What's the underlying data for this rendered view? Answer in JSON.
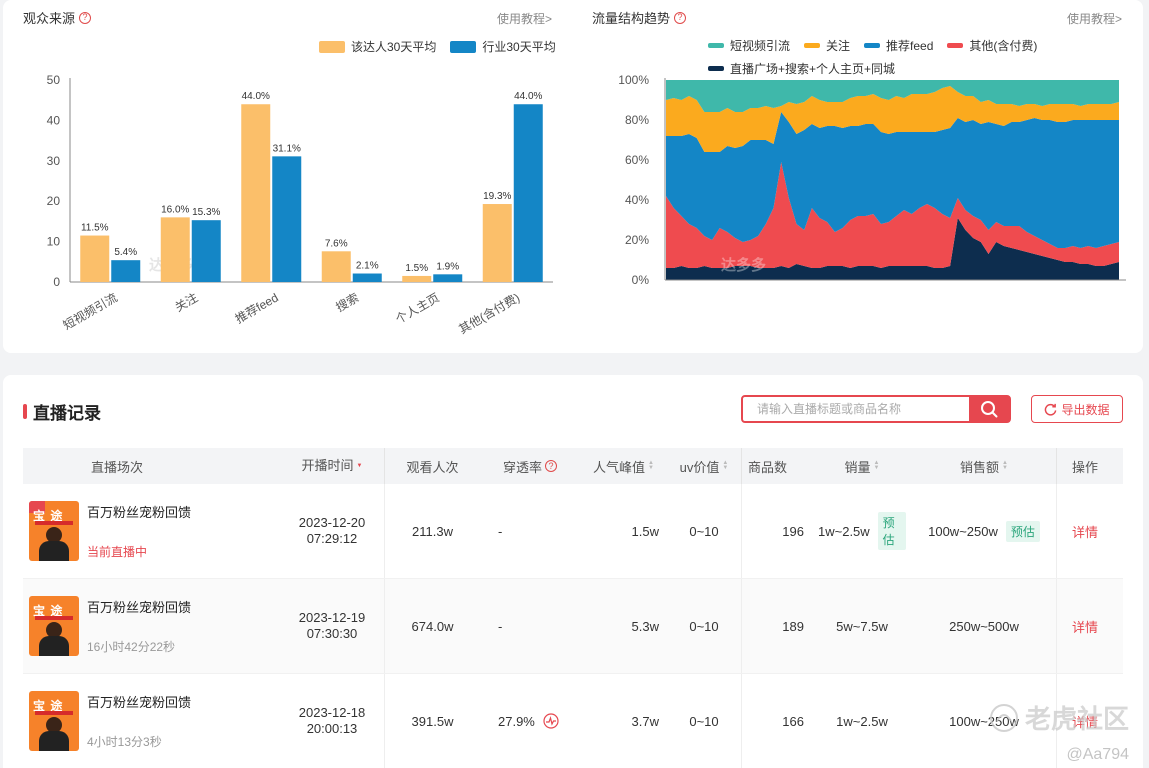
{
  "audience_source": {
    "title": "观众来源",
    "tutorial": "使用教程>",
    "legend": [
      "该达人30天平均",
      "行业30天平均"
    ],
    "watermark": "达多多"
  },
  "traffic_trend": {
    "title": "流量结构趋势",
    "tutorial": "使用教程>",
    "legend": [
      "短视频引流",
      "关注",
      "推荐feed",
      "其他(含付费)",
      "直播广场+搜索+个人主页+同城"
    ],
    "watermark": "达多多"
  },
  "chart_data": [
    {
      "type": "bar",
      "title": "观众来源",
      "categories": [
        "短视频引流",
        "关注",
        "推荐feed",
        "搜索",
        "个人主页",
        "其他(含付费)"
      ],
      "series": [
        {
          "name": "该达人30天平均",
          "values": [
            11.5,
            16.0,
            44.0,
            7.6,
            1.5,
            19.3
          ],
          "labels": [
            "11.5%",
            "16.0%",
            "44.0%",
            "7.6%",
            "1.5%",
            "19.3%"
          ],
          "color": "#fbbf6a"
        },
        {
          "name": "行业30天平均",
          "values": [
            5.4,
            15.3,
            31.1,
            2.1,
            1.9,
            44.0
          ],
          "labels": [
            "5.4%",
            "15.3%",
            "31.1%",
            "2.1%",
            "1.9%",
            "44.0%"
          ],
          "color": "#1486c6"
        }
      ],
      "ylim": [
        0,
        50
      ],
      "yticks": [
        "0",
        "10",
        "20",
        "30",
        "40",
        "50"
      ],
      "legend_position": "top-right"
    },
    {
      "type": "area",
      "title": "流量结构趋势",
      "stacked_percent": true,
      "points": 60,
      "yticks": [
        "0%",
        "20%",
        "40%",
        "60%",
        "80%",
        "100%"
      ],
      "ylim": [
        0,
        100
      ],
      "series": [
        {
          "name": "直播广场+搜索+个人主页+同城",
          "color": "#0d2d4e",
          "values": [
            6,
            6,
            7,
            6,
            6,
            7,
            6,
            6,
            6,
            7,
            7,
            7,
            6,
            6,
            6,
            7,
            6,
            8,
            7,
            6,
            6,
            7,
            7,
            7,
            6,
            7,
            7,
            7,
            6,
            7,
            7,
            7,
            7,
            7,
            7,
            6,
            6,
            7,
            31,
            25,
            21,
            19,
            13,
            19,
            17,
            16,
            15,
            14,
            13,
            12,
            11,
            10,
            9,
            9,
            8,
            8,
            7,
            7,
            8,
            9
          ]
        },
        {
          "name": "其他(含付费)",
          "color": "#ef4b4f",
          "values": [
            36,
            30,
            25,
            22,
            20,
            15,
            14,
            20,
            18,
            14,
            12,
            13,
            16,
            22,
            30,
            52,
            35,
            20,
            18,
            30,
            25,
            22,
            17,
            19,
            24,
            25,
            25,
            26,
            22,
            22,
            25,
            28,
            26,
            29,
            31,
            30,
            27,
            24,
            10,
            10,
            11,
            11,
            12,
            10,
            10,
            11,
            12,
            10,
            9,
            8,
            7,
            6,
            7,
            8,
            8,
            9,
            9,
            10,
            10,
            10
          ]
        },
        {
          "name": "推荐feed",
          "color": "#1486c6",
          "values": [
            30,
            36,
            40,
            45,
            45,
            42,
            44,
            38,
            43,
            45,
            48,
            50,
            48,
            42,
            32,
            25,
            38,
            45,
            50,
            42,
            45,
            48,
            53,
            50,
            47,
            45,
            46,
            45,
            46,
            44,
            42,
            39,
            41,
            38,
            36,
            38,
            42,
            45,
            40,
            44,
            48,
            48,
            54,
            49,
            50,
            52,
            52,
            56,
            59,
            60,
            62,
            63,
            63,
            63,
            64,
            63,
            64,
            63,
            62,
            61
          ]
        },
        {
          "name": "关注",
          "color": "#fbaa1e",
          "values": [
            18,
            19,
            18,
            19,
            19,
            20,
            20,
            20,
            19,
            18,
            17,
            16,
            16,
            17,
            18,
            3,
            10,
            15,
            14,
            14,
            14,
            12,
            12,
            13,
            14,
            15,
            14,
            15,
            17,
            17,
            18,
            17,
            19,
            19,
            19,
            20,
            21,
            21,
            13,
            13,
            12,
            11,
            11,
            10,
            11,
            9,
            8,
            8,
            7,
            7,
            8,
            9,
            9,
            8,
            7,
            8,
            8,
            8,
            8,
            9
          ]
        },
        {
          "name": "短视频引流",
          "color": "#3fb8aa",
          "values": [
            10,
            9,
            10,
            8,
            10,
            16,
            16,
            16,
            14,
            16,
            16,
            14,
            14,
            13,
            14,
            13,
            11,
            12,
            11,
            8,
            10,
            11,
            11,
            11,
            9,
            8,
            8,
            7,
            9,
            10,
            8,
            9,
            7,
            7,
            7,
            6,
            4,
            3,
            6,
            8,
            8,
            11,
            10,
            12,
            12,
            12,
            13,
            12,
            12,
            13,
            12,
            12,
            12,
            12,
            13,
            12,
            12,
            12,
            12,
            11
          ]
        }
      ]
    }
  ],
  "live_records": {
    "title": "直播记录",
    "search_placeholder": "请输入直播标题或商品名称",
    "export_label": "导出数据",
    "columns": {
      "session": "直播场次",
      "start_time": "开播时间",
      "viewers": "观看人次",
      "penetration": "穿透率",
      "peak": "人气峰值",
      "uv": "uv价值",
      "goods": "商品数",
      "sales": "销量",
      "amount": "销售额",
      "op": "操作"
    },
    "rows": [
      {
        "name": "百万粉丝宠粉回馈",
        "status": "当前直播中",
        "date": "2023-12-20",
        "time": "07:29:12",
        "viewers": "211.3w",
        "penetration": "-",
        "peak": "1.5w",
        "uv": "0~10",
        "goods": "196",
        "sales": "1w~2.5w",
        "sales_tag": "预估",
        "amount": "100w~250w",
        "amount_tag": "预估",
        "op": "详情"
      },
      {
        "name": "百万粉丝宠粉回馈",
        "status": "16小时42分22秒",
        "date": "2023-12-19",
        "time": "07:30:30",
        "viewers": "674.0w",
        "penetration": "-",
        "peak": "5.3w",
        "uv": "0~10",
        "goods": "189",
        "sales": "5w~7.5w",
        "sales_tag": "",
        "amount": "250w~500w",
        "amount_tag": "",
        "op": "详情"
      },
      {
        "name": "百万粉丝宠粉回馈",
        "status": "4小时13分3秒",
        "date": "2023-12-18",
        "time": "20:00:13",
        "viewers": "391.5w",
        "penetration": "27.9%",
        "peak": "3.7w",
        "uv": "0~10",
        "goods": "166",
        "sales": "1w~2.5w",
        "sales_tag": "",
        "amount": "100w~250w",
        "amount_tag": "",
        "op": "详情"
      }
    ]
  },
  "watermark": {
    "text": "老虎社区",
    "user": "@Aa794"
  }
}
